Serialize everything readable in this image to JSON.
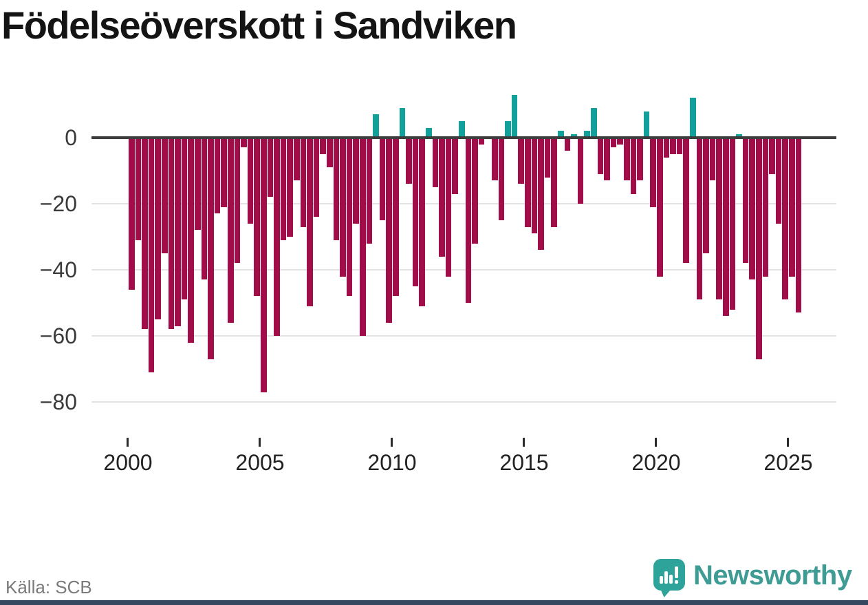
{
  "title": "Födelseöverskott i Sandviken",
  "source": "Källa: SCB",
  "branding": {
    "name": "Newsworthy",
    "wordmark_color": "#3e9c95",
    "icon": "newsworthy-speech-bubble-chart-icon",
    "icon_color": "#2ea39a"
  },
  "footer_bar_color": "#364860",
  "chart_data": {
    "type": "bar",
    "title": "Födelseöverskott i Sandviken",
    "frequency": "quarterly",
    "x_start": "2000 Q1",
    "x_end": "2025 Q2",
    "values": [
      -46,
      -31,
      -58,
      -71,
      -55,
      -35,
      -58,
      -57,
      -49,
      -62,
      -28,
      -43,
      -67,
      -23,
      -21,
      -56,
      -38,
      -3,
      -26,
      -48,
      -77,
      -18,
      -60,
      -31,
      -30,
      -13,
      -27,
      -51,
      -24,
      -5,
      -9,
      -31,
      -42,
      -48,
      -26,
      -60,
      -32,
      7,
      -25,
      -56,
      -48,
      9,
      -14,
      -45,
      -51,
      3,
      -15,
      -36,
      -42,
      -17,
      5,
      -50,
      -32,
      -2,
      0,
      -13,
      -25,
      5,
      13,
      -14,
      -27,
      -29,
      -34,
      -12,
      -27,
      2,
      -4,
      1,
      -20,
      2,
      9,
      -11,
      -13,
      -3,
      -2,
      -13,
      -17,
      -13,
      8,
      -21,
      -42,
      -6,
      -5,
      -5,
      -38,
      12,
      -49,
      -35,
      -13,
      -49,
      -54,
      -52,
      1,
      -38,
      -43,
      -67,
      -42,
      -11,
      -26,
      -49,
      -42,
      -53
    ],
    "colors": {
      "negative": "#a00d49",
      "positive": "#12a19a"
    },
    "x_ticks": [
      "2000",
      "2005",
      "2010",
      "2015",
      "2020",
      "2025"
    ],
    "y_ticks": [
      "0",
      "−20",
      "−40",
      "−60",
      "−80"
    ],
    "ylim": [
      -85,
      15
    ],
    "baseline": 0,
    "grid": "horizontal",
    "legend": "none"
  }
}
